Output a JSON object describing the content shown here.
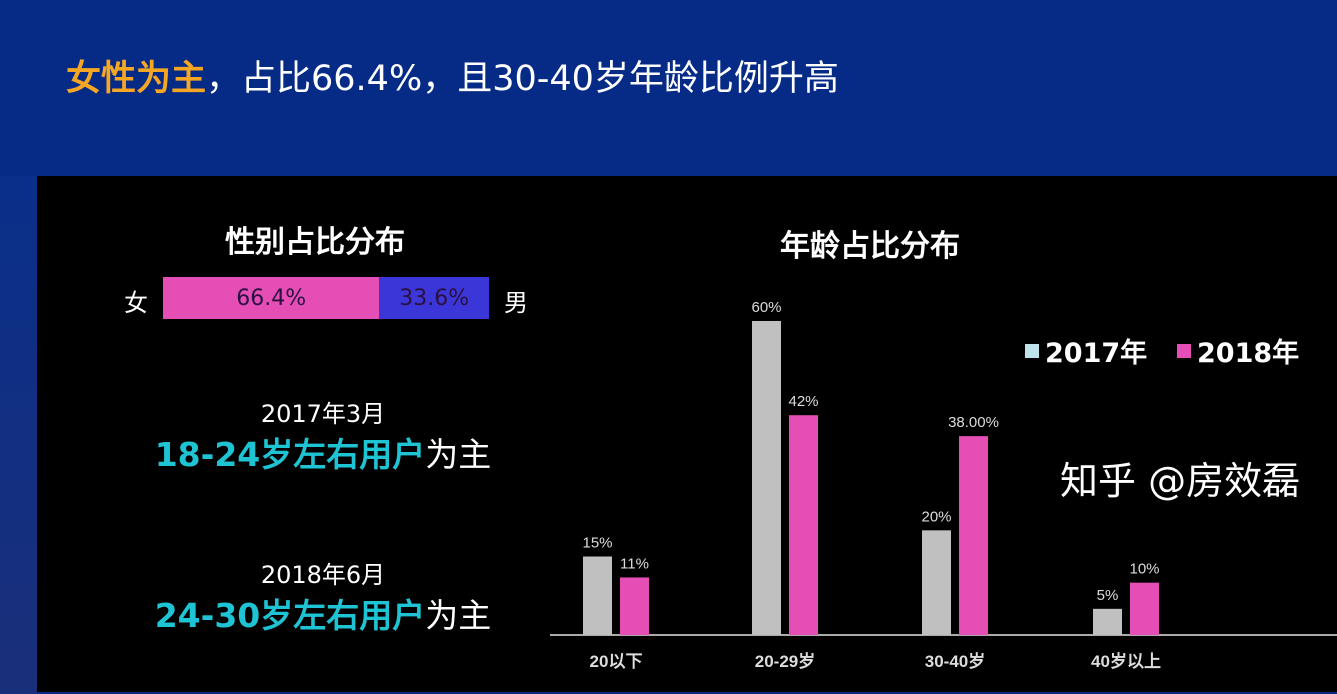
{
  "headline": {
    "highlight": "女性为主",
    "rest": "，占比66.4%，且30-40岁年龄比例升高"
  },
  "gender": {
    "title": "性别占比分布",
    "female_label": "女",
    "male_label": "男",
    "female_value": 66.4,
    "male_value": 33.6,
    "female_text": "66.4%",
    "male_text": "33.6%",
    "female_color": "#e54eb5",
    "male_color": "#3b36d8"
  },
  "notes": [
    {
      "date": "2017年3月",
      "highlight": "18-24岁左右用户",
      "suffix": "为主"
    },
    {
      "date": "2018年6月",
      "highlight": "24-30岁左右用户",
      "suffix": "为主"
    }
  ],
  "watermark": "知乎 @房效磊",
  "chart_data": {
    "type": "bar",
    "title": "年龄占比分布",
    "categories": [
      "20以下",
      "20-29岁",
      "30-40岁",
      "40岁以上"
    ],
    "series": [
      {
        "name": "2017年",
        "values": [
          15,
          60,
          20,
          5
        ],
        "labels": [
          "15%",
          "60%",
          "20%",
          "5%"
        ],
        "color": "#c0c0c0",
        "legend_color": "#bfe3ea"
      },
      {
        "name": "2018年",
        "values": [
          11,
          42,
          38,
          10
        ],
        "labels": [
          "11%",
          "42%",
          "38.00%",
          "10%"
        ],
        "color": "#e54eb5"
      }
    ],
    "ylim": [
      0,
      60
    ],
    "legend": "top-right",
    "grid": false
  }
}
